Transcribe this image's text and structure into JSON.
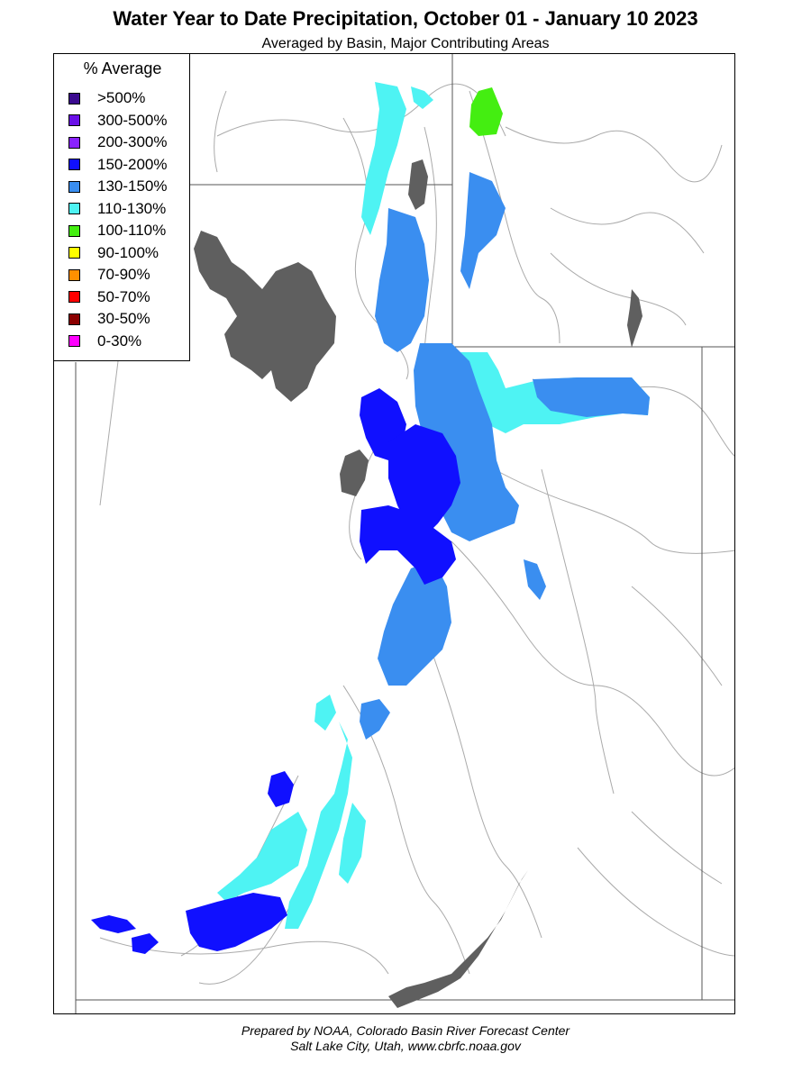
{
  "title": "Water Year to Date Precipitation, October 01  - January 10 2023",
  "subtitle": "Averaged by Basin, Major Contributing Areas",
  "legend": {
    "title": "% Average",
    "items": [
      {
        "label": ">500%",
        "color": "#3b0a8f"
      },
      {
        "label": "300-500%",
        "color": "#6a10e8"
      },
      {
        "label": "200-300%",
        "color": "#8a22ff"
      },
      {
        "label": "150-200%",
        "color": "#1010ff"
      },
      {
        "label": "130-150%",
        "color": "#3a8ef0"
      },
      {
        "label": "110-130%",
        "color": "#4ef3f3"
      },
      {
        "label": "100-110%",
        "color": "#44ee11"
      },
      {
        "label": "90-100%",
        "color": "#ffff00"
      },
      {
        "label": "70-90%",
        "color": "#ff9000"
      },
      {
        "label": "50-70%",
        "color": "#ff0000"
      },
      {
        "label": "30-50%",
        "color": "#8b0000"
      },
      {
        "label": "0-30%",
        "color": "#ff00ff"
      }
    ]
  },
  "colors": {
    "lake": "#5f5f5f",
    "boundary": "#606060",
    "river": "#a9a9a9"
  },
  "footer": {
    "line1": "Prepared by NOAA, Colorado Basin River Forecast Center",
    "line2": "Salt Lake City, Utah, www.cbrfc.noaa.gov"
  }
}
